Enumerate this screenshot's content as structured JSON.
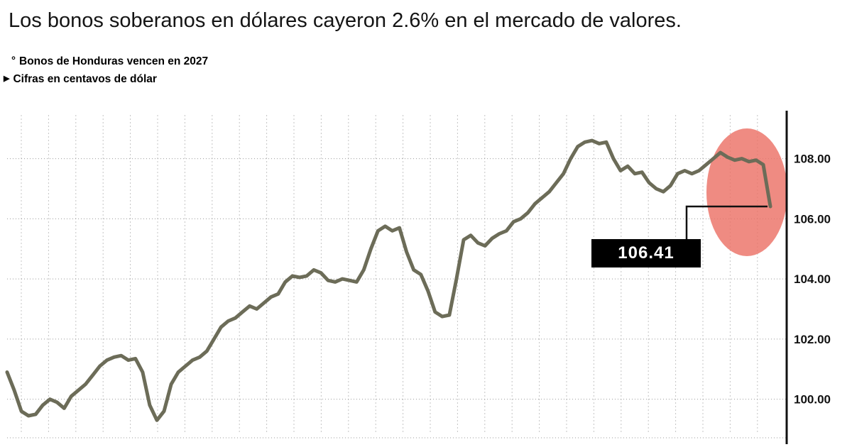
{
  "header": {
    "title": "Los bonos soberanos en dólares cayeron 2.6% en el mercado de valores.",
    "note1_bullet": "°",
    "note1": "Bonos de Honduras vencen en 2027",
    "note2_bullet": "▶",
    "note2": "Cifras en centavos de dólar"
  },
  "colors": {
    "line": "#6c6c58",
    "highlight": "#ec7166",
    "grid": "#c4c4c4",
    "dotted_grid": "#9b9b9b",
    "axis": "#111111",
    "tick_text": "#111111",
    "callout_bg": "#000000",
    "callout_text": "#ffffff"
  },
  "chart_data": {
    "type": "line",
    "title": "Los bonos soberanos en dólares cayeron 2.6% en el mercado de valores.",
    "xlabel": "",
    "ylabel": "centavos de dólar",
    "ylim": [
      98.6,
      109.5
    ],
    "grid": true,
    "legend": false,
    "y_ticks": [
      108,
      106,
      104,
      102,
      100
    ],
    "y_tick_labels": [
      "108.00",
      "106.00",
      "104.00",
      "102.00",
      "100.00"
    ],
    "series_name": "Bono soberano de Honduras 2027 (centavos de dólar)",
    "values": [
      100.9,
      100.3,
      99.6,
      99.45,
      99.5,
      99.8,
      100.0,
      99.9,
      99.7,
      100.1,
      100.3,
      100.5,
      100.8,
      101.1,
      101.3,
      101.4,
      101.45,
      101.3,
      101.35,
      100.9,
      99.8,
      99.3,
      99.6,
      100.5,
      100.9,
      101.1,
      101.3,
      101.4,
      101.6,
      102.0,
      102.4,
      102.6,
      102.7,
      102.9,
      103.1,
      103.0,
      103.2,
      103.4,
      103.5,
      103.9,
      104.1,
      104.05,
      104.1,
      104.3,
      104.2,
      103.95,
      103.9,
      104.0,
      103.95,
      103.9,
      104.3,
      105.0,
      105.6,
      105.75,
      105.6,
      105.7,
      104.9,
      104.3,
      104.15,
      103.6,
      102.9,
      102.75,
      102.8,
      104.0,
      105.3,
      105.45,
      105.2,
      105.1,
      105.35,
      105.5,
      105.6,
      105.9,
      106.0,
      106.2,
      106.5,
      106.7,
      106.9,
      107.2,
      107.5,
      108.0,
      108.4,
      108.55,
      108.6,
      108.5,
      108.55,
      108.0,
      107.6,
      107.75,
      107.5,
      107.55,
      107.2,
      107.0,
      106.9,
      107.1,
      107.5,
      107.6,
      107.5,
      107.6,
      107.8,
      108.0,
      108.2,
      108.05,
      107.95,
      108.0,
      107.9,
      107.95,
      107.8,
      106.41
    ],
    "annotation": {
      "label": "106.41",
      "value": 106.41,
      "note": "último precio, destacado con elipse roja"
    }
  }
}
